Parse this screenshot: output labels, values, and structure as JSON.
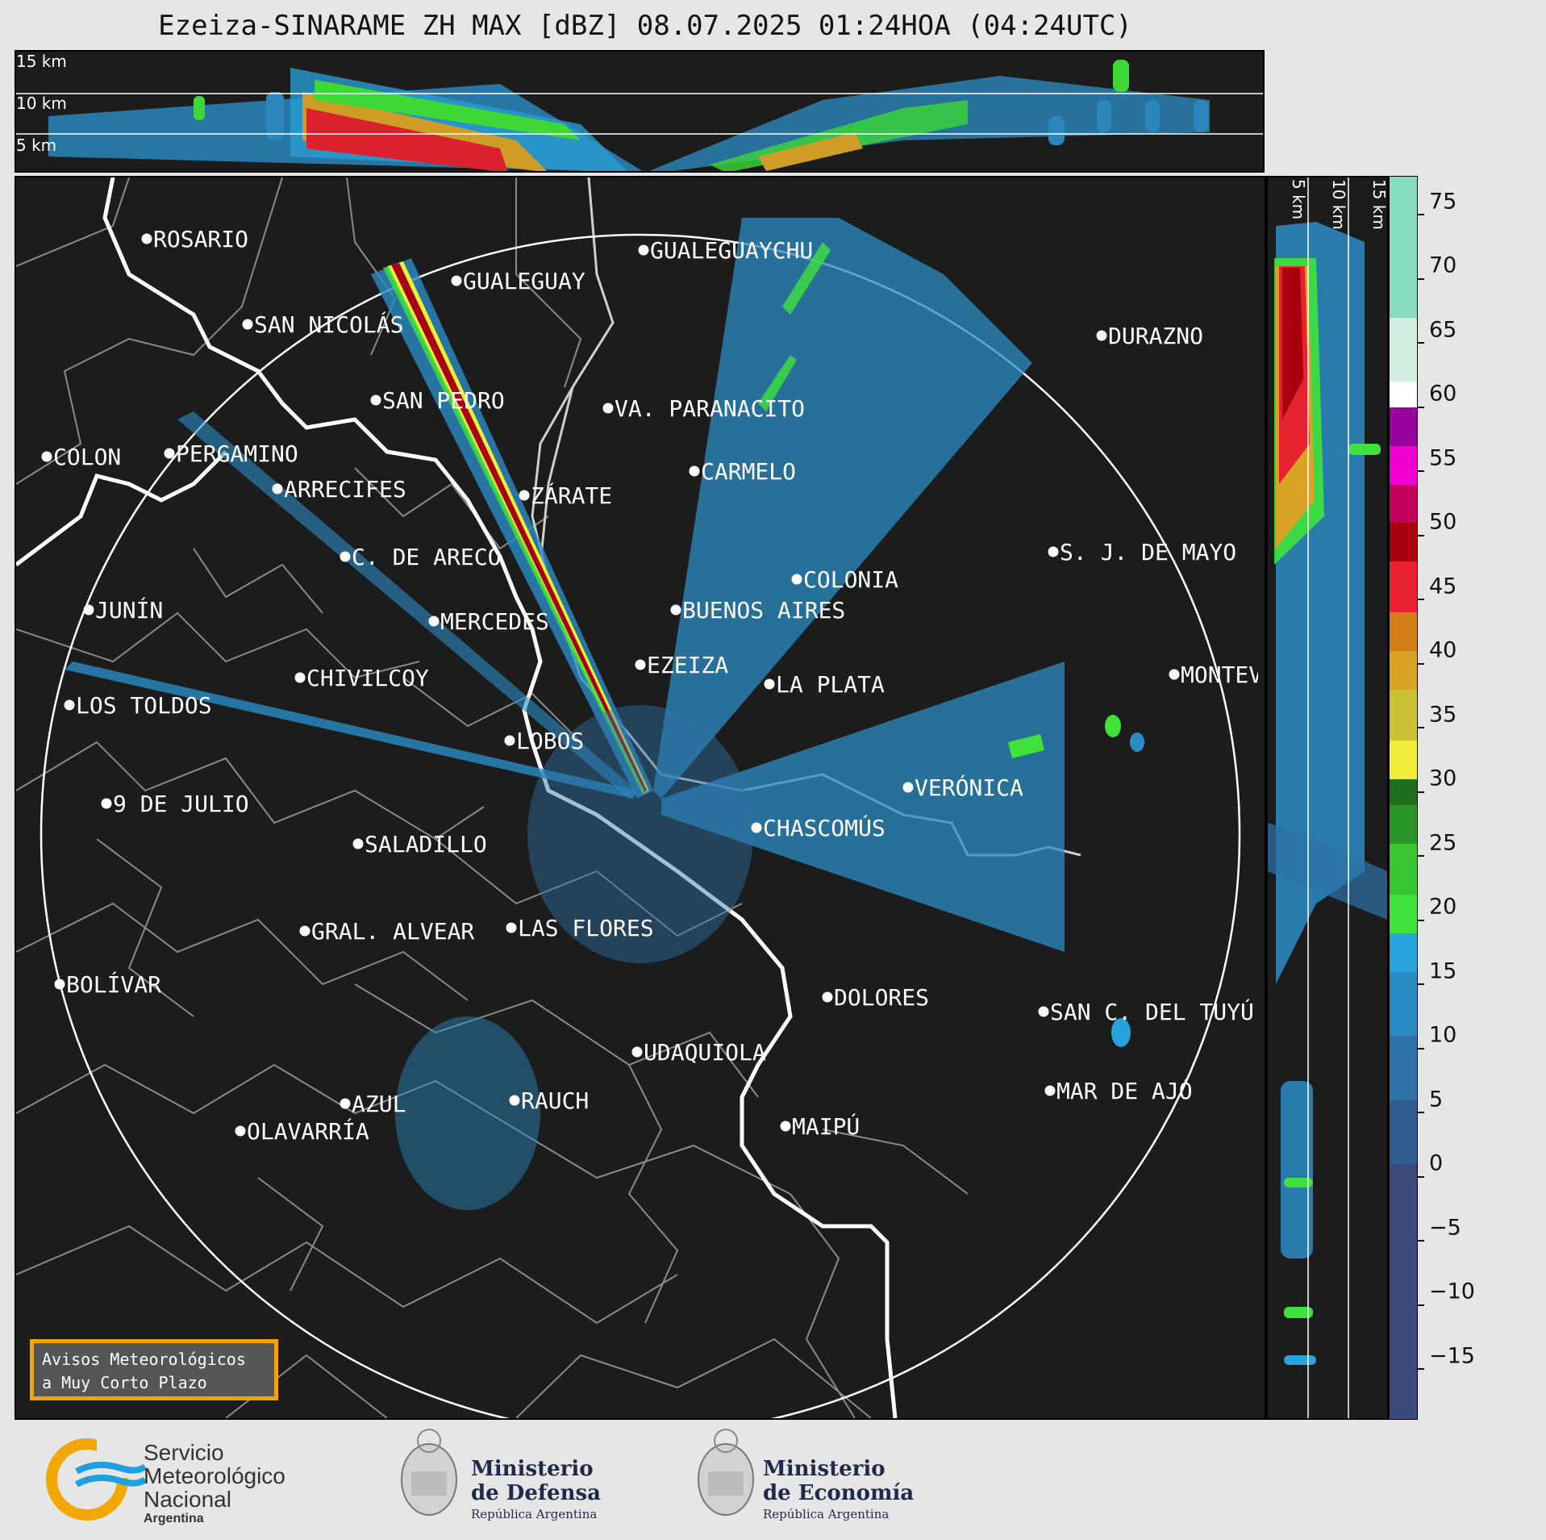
{
  "title": "Ezeiza-SINARAME ZH MAX [dBZ] 08.07.2025 01:24HOA (04:24UTC)",
  "top_panel": {
    "altitude_labels": [
      "15 km",
      "10 km",
      "5 km"
    ]
  },
  "side_panel": {
    "altitude_labels": [
      "5 km",
      "10 km",
      "15 km"
    ]
  },
  "colorbar": {
    "unit": "dBZ",
    "min": -20,
    "max": 77,
    "ticks": [
      "75",
      "70",
      "65",
      "60",
      "55",
      "50",
      "45",
      "40",
      "35",
      "30",
      "25",
      "20",
      "15",
      "10",
      "5",
      "0",
      "−5",
      "−10",
      "−15"
    ],
    "segments": [
      {
        "from": -20,
        "to": 0,
        "color": "#3b4a7a"
      },
      {
        "from": 0,
        "to": 5,
        "color": "#2f5d8f"
      },
      {
        "from": 5,
        "to": 10,
        "color": "#2e73a8"
      },
      {
        "from": 10,
        "to": 15,
        "color": "#2b8cc4"
      },
      {
        "from": 15,
        "to": 18,
        "color": "#29a3dc"
      },
      {
        "from": 18,
        "to": 21,
        "color": "#3fe23a"
      },
      {
        "from": 21,
        "to": 25,
        "color": "#37c532"
      },
      {
        "from": 25,
        "to": 28,
        "color": "#2a9428"
      },
      {
        "from": 28,
        "to": 30,
        "color": "#1f6e1e"
      },
      {
        "from": 30,
        "to": 33,
        "color": "#f2ef3a"
      },
      {
        "from": 33,
        "to": 37,
        "color": "#c9c136"
      },
      {
        "from": 37,
        "to": 40,
        "color": "#d9a326"
      },
      {
        "from": 40,
        "to": 43,
        "color": "#d27f18"
      },
      {
        "from": 43,
        "to": 47,
        "color": "#e6222e"
      },
      {
        "from": 47,
        "to": 50,
        "color": "#a8000d"
      },
      {
        "from": 50,
        "to": 53,
        "color": "#c4005e"
      },
      {
        "from": 53,
        "to": 56,
        "color": "#f000d0"
      },
      {
        "from": 56,
        "to": 59,
        "color": "#9a009c"
      },
      {
        "from": 59,
        "to": 61,
        "color": "#ffffff"
      },
      {
        "from": 61,
        "to": 66,
        "color": "#cfeee0"
      },
      {
        "from": 66,
        "to": 77,
        "color": "#86dcc0"
      }
    ]
  },
  "radar": {
    "name": "EZEIZA",
    "range_ring_km": 240
  },
  "cities": [
    {
      "name": "ROSARIO"
    },
    {
      "name": "GUALEGUAYCHU"
    },
    {
      "name": "GUALEGUAY"
    },
    {
      "name": "SAN NICOLÁS"
    },
    {
      "name": "DURAZNO"
    },
    {
      "name": "SAN PEDRO"
    },
    {
      "name": "VA. PARANACITO"
    },
    {
      "name": "COLON"
    },
    {
      "name": "PERGAMINO"
    },
    {
      "name": "CARMELO"
    },
    {
      "name": "ARRECIFES"
    },
    {
      "name": "ZÁRATE"
    },
    {
      "name": "C. DE ARECO"
    },
    {
      "name": "S. J. DE MAYO"
    },
    {
      "name": "COLONIA"
    },
    {
      "name": "JUNÍN"
    },
    {
      "name": "BUENOS AIRES"
    },
    {
      "name": "MERCEDES"
    },
    {
      "name": "EZEIZA"
    },
    {
      "name": "MONTEVIDEO"
    },
    {
      "name": "CHIVILCOY"
    },
    {
      "name": "LA PLATA"
    },
    {
      "name": "LOS TOLDOS"
    },
    {
      "name": "LOBOS"
    },
    {
      "name": "VERÓNICA"
    },
    {
      "name": "9 DE JULIO"
    },
    {
      "name": "CHASCOMÚS"
    },
    {
      "name": "SALADILLO"
    },
    {
      "name": "LAS FLORES"
    },
    {
      "name": "GRAL. ALVEAR"
    },
    {
      "name": "BOLÍVAR"
    },
    {
      "name": "DOLORES"
    },
    {
      "name": "SAN C. DEL TUYÚ"
    },
    {
      "name": "UDAQUIOLA"
    },
    {
      "name": "MAR DE AJÓ"
    },
    {
      "name": "RAUCH"
    },
    {
      "name": "AZUL"
    },
    {
      "name": "OLAVARRÍA"
    },
    {
      "name": "MAIPÚ"
    }
  ],
  "aviso": {
    "line1": "Avisos Meteorológicos",
    "line2": "a Muy Corto Plazo"
  },
  "logos": {
    "smn": {
      "line1": "Servicio",
      "line2": "Meteorológico",
      "line3": "Nacional",
      "line4": "Argentina"
    },
    "defensa": {
      "line1": "Ministerio",
      "line2": "de Defensa",
      "line3": "República Argentina"
    },
    "economia": {
      "line1": "Ministerio",
      "line2": "de Economía",
      "line3": "República Argentina"
    }
  }
}
